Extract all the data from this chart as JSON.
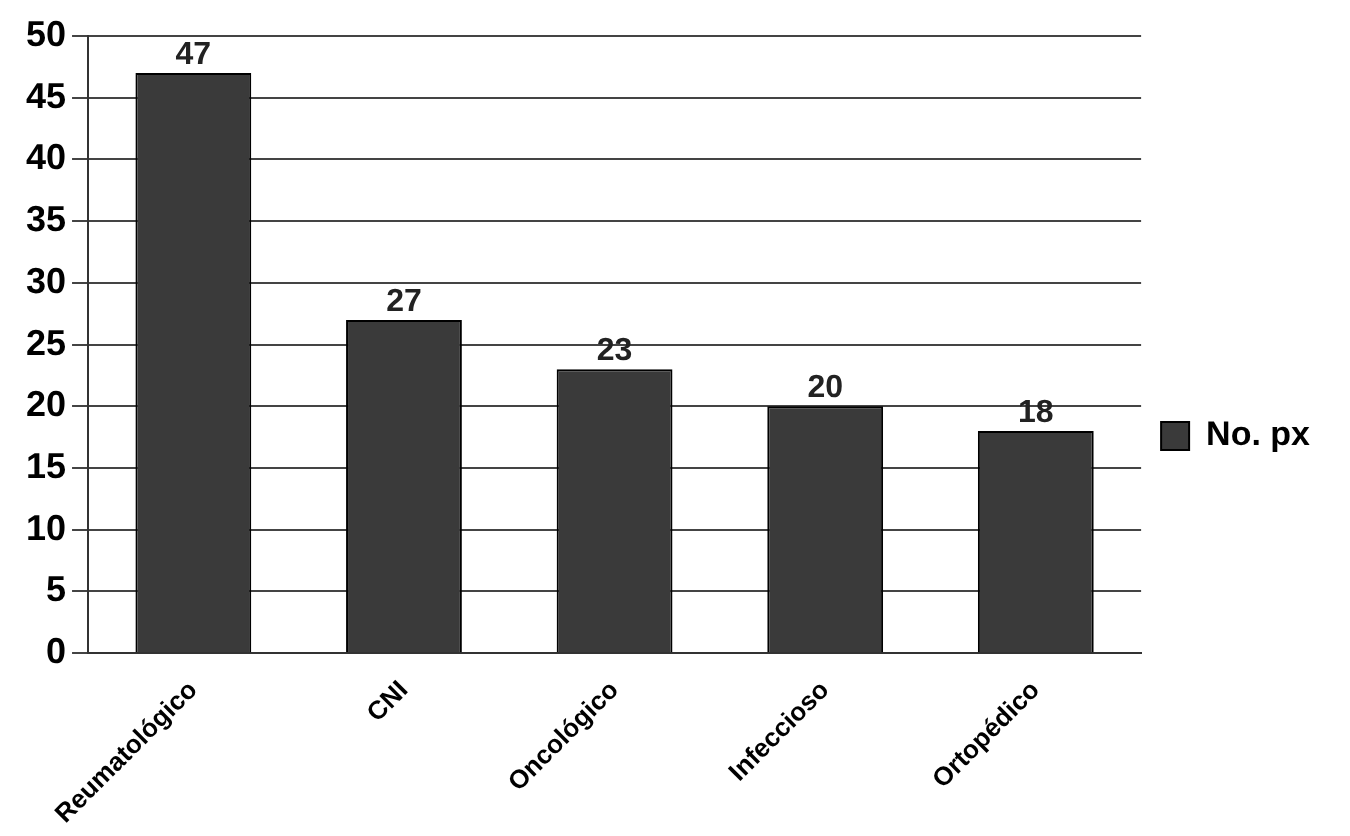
{
  "chart_data": {
    "type": "bar",
    "categories": [
      "Reumatológico",
      "CNI",
      "Oncológico",
      "Infeccioso",
      "Ortopédico"
    ],
    "series": [
      {
        "name": "No. px",
        "color": "#3a3a3a",
        "values": [
          47,
          27,
          23,
          20,
          18
        ]
      }
    ],
    "ylim": [
      0,
      50
    ],
    "yticks": [
      0,
      5,
      10,
      15,
      20,
      25,
      30,
      35,
      40,
      45,
      50
    ],
    "grid": "y",
    "legend": "right",
    "data_labels": true
  }
}
